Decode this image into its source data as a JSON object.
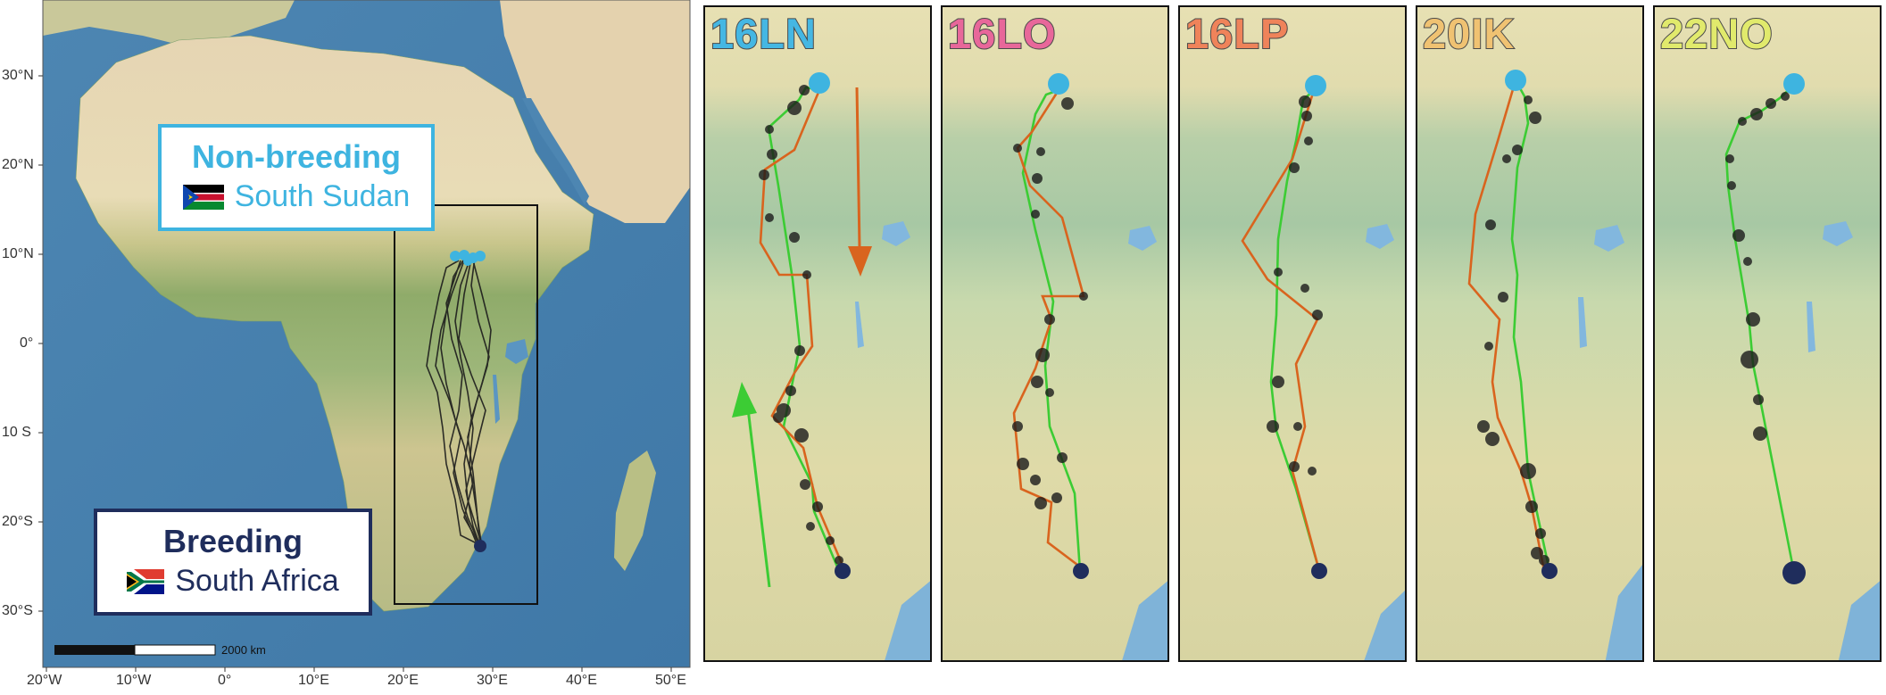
{
  "overview": {
    "non_breeding": {
      "title": "Non-breeding",
      "country": "South Sudan"
    },
    "breeding": {
      "title": "Breeding",
      "country": "South Africa"
    },
    "scale_label": "2000 km",
    "lat_labels": [
      "30°N",
      "20°N",
      "10°N",
      "0°",
      "10 S",
      "20°S",
      "30°S"
    ],
    "lon_labels": [
      "20°W",
      "10°W",
      "0°",
      "10°E",
      "20°E",
      "30°E",
      "40°E",
      "50°E"
    ]
  },
  "colors": {
    "non_breeding_marker": "#3eb4e0",
    "breeding_marker": "#1f2d5c",
    "autumn_route": "#d9641e",
    "spring_route": "#3ccc34",
    "stopover": "#1b1b1b",
    "non_breeding_box_border": "#3eb4e0",
    "breeding_box_border": "#1f2d5c"
  },
  "panels": [
    {
      "id": "16LN",
      "color": "#45b7e3"
    },
    {
      "id": "16LO",
      "color": "#e8679a"
    },
    {
      "id": "16LP",
      "color": "#ef835a"
    },
    {
      "id": "20IK",
      "color": "#f0c272"
    },
    {
      "id": "22NO",
      "color": "#e1ea6c"
    }
  ]
}
